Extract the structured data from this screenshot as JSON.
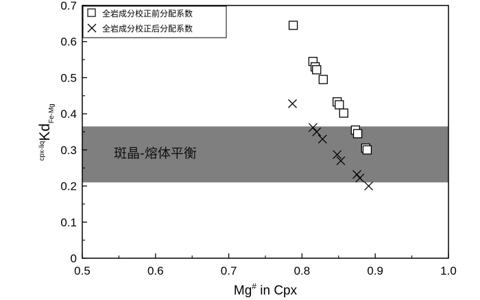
{
  "chart_data": {
    "type": "scatter",
    "title": "",
    "xlabel": {
      "main": "Mg",
      "sup": "#",
      "rest": " in Cpx"
    },
    "ylabel": {
      "pre": "cpx-liq",
      "main": "Kd",
      "sub": "Fe-Mg"
    },
    "xlim": [
      0.5,
      1.0
    ],
    "ylim": [
      0,
      0.7
    ],
    "xticks": [
      "0.5",
      "0.6",
      "0.7",
      "0.8",
      "0.9",
      "1.0"
    ],
    "yticks": [
      "0",
      "0.1",
      "0.2",
      "0.3",
      "0.4",
      "0.5",
      "0.6",
      "0.7"
    ],
    "band": {
      "ymin": 0.21,
      "ymax": 0.365,
      "label": "斑晶-熔体平衡",
      "color": "#7f7f7f"
    },
    "legend_position": "top-left",
    "series": [
      {
        "name": "全岩成分校正前分配系数",
        "marker": "square",
        "points": [
          [
            0.788,
            0.645
          ],
          [
            0.815,
            0.545
          ],
          [
            0.818,
            0.53
          ],
          [
            0.82,
            0.522
          ],
          [
            0.829,
            0.495
          ],
          [
            0.848,
            0.433
          ],
          [
            0.851,
            0.425
          ],
          [
            0.857,
            0.402
          ],
          [
            0.873,
            0.355
          ],
          [
            0.876,
            0.345
          ],
          [
            0.887,
            0.305
          ],
          [
            0.889,
            0.3
          ]
        ]
      },
      {
        "name": "全岩成分校正后分配系数",
        "marker": "x",
        "points": [
          [
            0.787,
            0.428
          ],
          [
            0.815,
            0.362
          ],
          [
            0.82,
            0.35
          ],
          [
            0.828,
            0.33
          ],
          [
            0.848,
            0.287
          ],
          [
            0.853,
            0.27
          ],
          [
            0.875,
            0.232
          ],
          [
            0.879,
            0.222
          ],
          [
            0.891,
            0.2
          ]
        ]
      }
    ]
  }
}
